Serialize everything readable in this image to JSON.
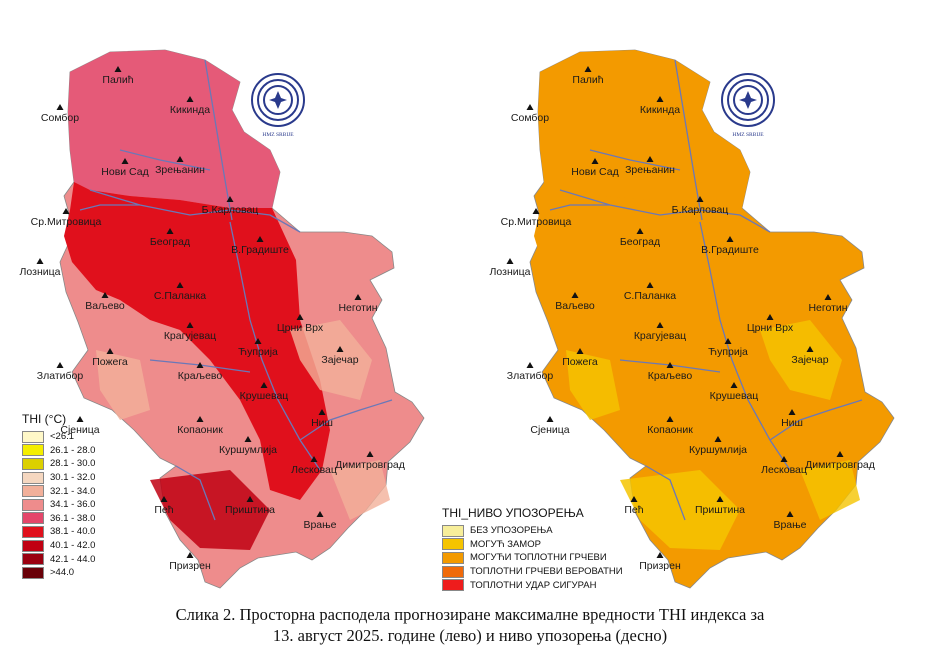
{
  "caption": {
    "line1": "Слика 2. Просторна расподела прогнозиране максималне вредности THI индекса за",
    "line2": "13. август 2025. године (лево) и ниво упозорења (десно)"
  },
  "logo": {
    "text": "HMZ SRBIJE"
  },
  "left_legend": {
    "title": "THI (°C)",
    "items": [
      {
        "label": "<26.1",
        "color": "#fff8c8"
      },
      {
        "label": "26.1 - 28.0",
        "color": "#f4ee00"
      },
      {
        "label": "28.1 - 30.0",
        "color": "#dcd000"
      },
      {
        "label": "30.1 - 32.0",
        "color": "#f5d7c0"
      },
      {
        "label": "32.1 - 34.0",
        "color": "#f2b09a"
      },
      {
        "label": "34.1 - 36.0",
        "color": "#ee8c8c"
      },
      {
        "label": "36.1 - 38.0",
        "color": "#e4466a"
      },
      {
        "label": "38.1 - 40.0",
        "color": "#e0101c"
      },
      {
        "label": "40.1 - 42.0",
        "color": "#c00012"
      },
      {
        "label": "42.1 - 44.0",
        "color": "#9a0010"
      },
      {
        "label": ">44.0",
        "color": "#6a0008"
      }
    ]
  },
  "right_legend": {
    "title": "THI_НИВО УПОЗОРЕЊА",
    "items": [
      {
        "label": "БЕЗ УПОЗОРЕЊА",
        "color": "#f7ee9a"
      },
      {
        "label": "МОГУЋ ЗАМОР",
        "color": "#f5c400"
      },
      {
        "label": "МОГУЋИ ТОПЛОТНИ ГРЧЕВИ",
        "color": "#f39a00"
      },
      {
        "label": "ТОПЛОТНИ ГРЧЕВИ ВЕРОВАТНИ",
        "color": "#f06a0a"
      },
      {
        "label": "ТОПЛОТНИ УДАР СИГУРАН",
        "color": "#ee1c1c"
      }
    ]
  },
  "cities": [
    "Палић",
    "Сомбор",
    "Кикинда",
    "Нови Сад",
    "Зрењанин",
    "Ср.Митровица",
    "Б.Карловац",
    "Београд",
    "В.Градиште",
    "Лозница",
    "С.Паланка",
    "Ваљево",
    "Неготин",
    "Црни Врх",
    "Крагујевац",
    "Ћуприја",
    "Зајечар",
    "Пожега",
    "Златибор",
    "Краљево",
    "Крушевац",
    "Ниш",
    "Сјеница",
    "Копаоник",
    "Куршумлија",
    "Лесковац",
    "Димитровград",
    "Пећ",
    "Приштина",
    "Врање",
    "Призрен"
  ],
  "map_colors": {
    "left_north": "#e55a78",
    "left_central": "#e0101c",
    "left_south": "#ee8c8c",
    "left_light": "#f2b09a",
    "right_base": "#f39a00",
    "right_light": "#f5c400",
    "river": "#6a78b8"
  }
}
